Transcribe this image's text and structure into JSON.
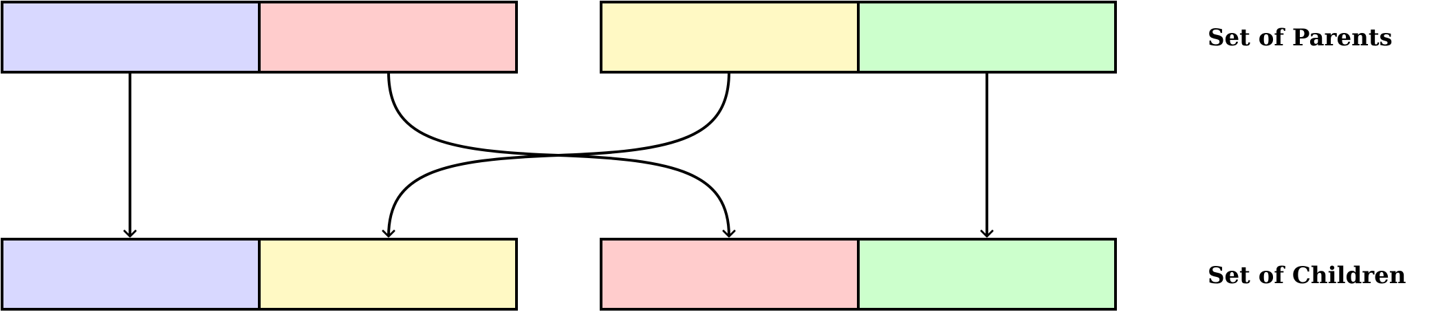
{
  "labels": {
    "parents": "Set of Parents",
    "children": "Set of Children"
  },
  "colors": {
    "blue": "#d8d8ff",
    "red": "#ffcccc",
    "yellow": "#fff9c4",
    "green": "#ccffcc",
    "stroke": "#000000"
  },
  "parents": [
    {
      "name": "parent-1",
      "segments": [
        "blue",
        "red"
      ]
    },
    {
      "name": "parent-2",
      "segments": [
        "yellow",
        "green"
      ]
    }
  ],
  "children": [
    {
      "name": "child-1",
      "segments": [
        "blue",
        "yellow"
      ]
    },
    {
      "name": "child-2",
      "segments": [
        "red",
        "green"
      ]
    }
  ]
}
